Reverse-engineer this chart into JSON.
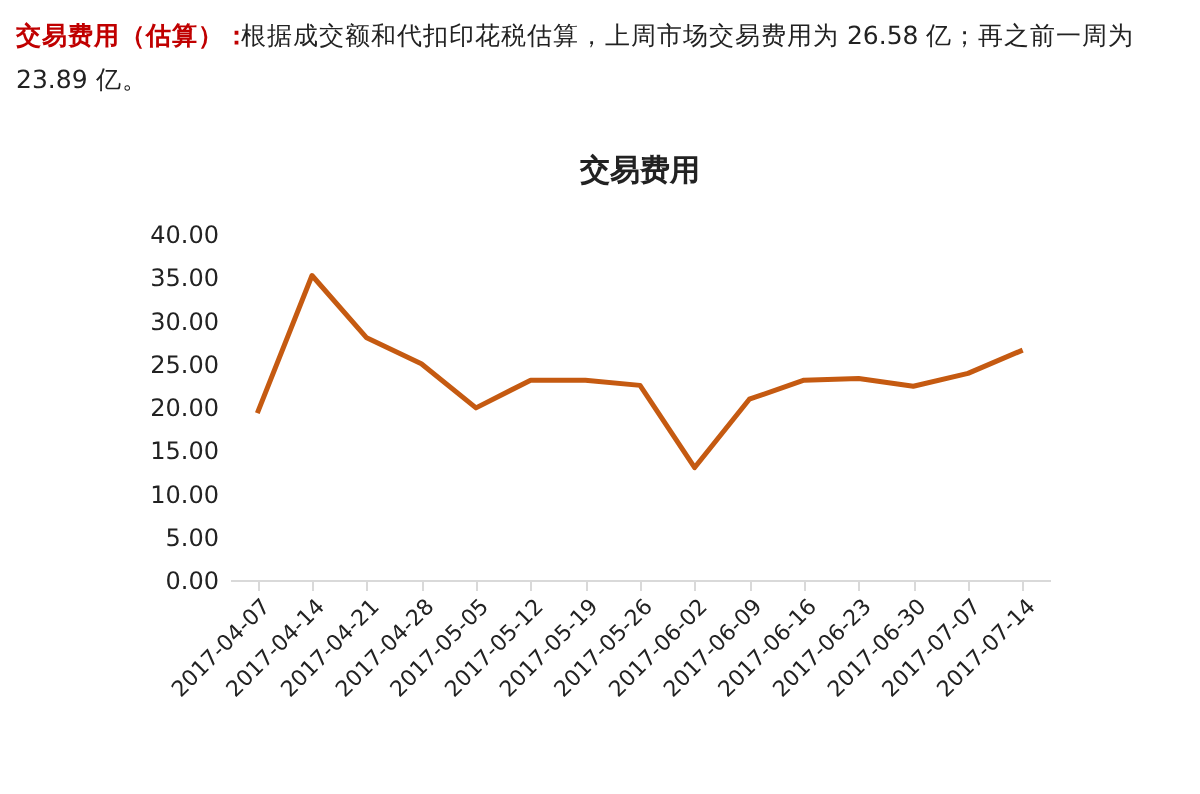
{
  "chart_data": {
    "type": "line",
    "title": "交易费用",
    "annotations": [
      "交易费用（估算）：",
      "根据成交额和代扣印花税估算，上周市场交易费用为 26.58 亿；再之前一周为 23.89 亿。"
    ],
    "categories": [
      "2017-04-07",
      "2017-04-14",
      "2017-04-21",
      "2017-04-28",
      "2017-05-05",
      "2017-05-12",
      "2017-05-19",
      "2017-05-26",
      "2017-06-02",
      "2017-06-09",
      "2017-06-16",
      "2017-06-23",
      "2017-06-30",
      "2017-07-07",
      "2017-07-14"
    ],
    "series": [
      {
        "color": "#c55a11",
        "values": [
          19.3,
          35.2,
          28.0,
          25.0,
          19.9,
          23.1,
          23.1,
          22.5,
          13.0,
          20.9,
          23.1,
          23.3,
          22.4,
          23.89,
          26.58
        ]
      }
    ],
    "ylim": [
      0,
      40
    ],
    "yticks": [
      {
        "value": 0,
        "label": "0.00"
      },
      {
        "value": 5,
        "label": "5.00"
      },
      {
        "value": 10,
        "label": "10.00"
      },
      {
        "value": 15,
        "label": "15.00"
      },
      {
        "value": 20,
        "label": "20.00"
      },
      {
        "value": 25,
        "label": "25.00"
      },
      {
        "value": 30,
        "label": "30.00"
      },
      {
        "value": 35,
        "label": "35.00"
      },
      {
        "value": 40,
        "label": "40.00"
      }
    ],
    "grid": false,
    "marker": "none",
    "line_style": "solid"
  }
}
